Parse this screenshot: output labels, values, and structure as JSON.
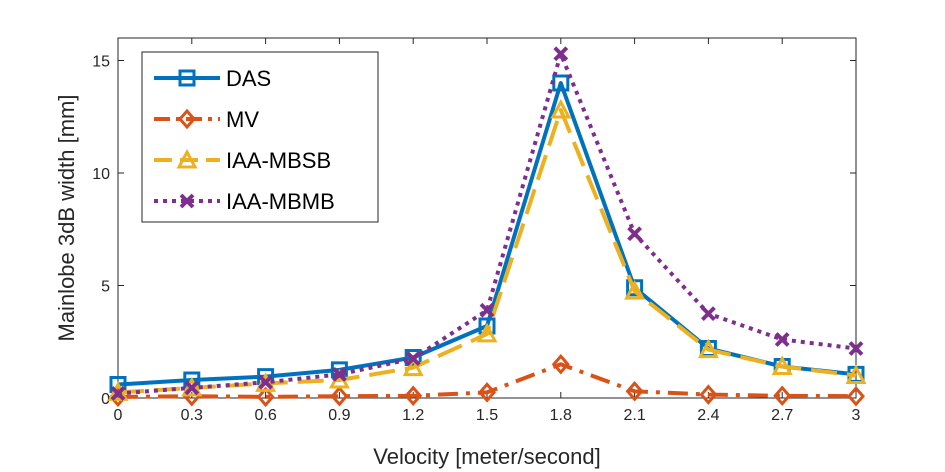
{
  "chart_data": {
    "type": "line",
    "xlabel": "Velocity [meter/second]",
    "ylabel": "Mainlobe 3dB width [mm]",
    "x": [
      0,
      0.3,
      0.6,
      0.9,
      1.2,
      1.5,
      1.8,
      2.1,
      2.4,
      2.7,
      3
    ],
    "xticks": [
      "0",
      "0.3",
      "0.6",
      "0.9",
      "1.2",
      "1.5",
      "1.8",
      "2.1",
      "2.4",
      "2.7",
      "3"
    ],
    "yticks": [
      "0",
      "5",
      "10",
      "15"
    ],
    "xlim": [
      0,
      3
    ],
    "ylim": [
      0,
      16
    ],
    "grid": false,
    "legend_position": "top-left",
    "series": [
      {
        "name": "DAS",
        "color": "#0072BD",
        "style": "solid",
        "marker": "square",
        "values": [
          0.6,
          0.8,
          0.95,
          1.25,
          1.8,
          3.2,
          14.0,
          4.9,
          2.2,
          1.4,
          1.05
        ]
      },
      {
        "name": "MV",
        "color": "#D95319",
        "style": "dashdot",
        "marker": "diamond",
        "values": [
          0.05,
          0.08,
          0.05,
          0.08,
          0.1,
          0.25,
          1.5,
          0.3,
          0.15,
          0.1,
          0.08
        ]
      },
      {
        "name": "IAA-MBSB",
        "color": "#EDB120",
        "style": "dashed",
        "marker": "triangle",
        "values": [
          0.25,
          0.45,
          0.65,
          0.8,
          1.35,
          2.85,
          12.8,
          4.75,
          2.15,
          1.4,
          1.0
        ]
      },
      {
        "name": "IAA-MBMB",
        "color": "#7E2F8E",
        "style": "dotted",
        "marker": "x",
        "values": [
          0.2,
          0.45,
          0.7,
          1.05,
          1.75,
          3.9,
          15.3,
          7.3,
          3.75,
          2.6,
          2.2
        ]
      }
    ]
  }
}
